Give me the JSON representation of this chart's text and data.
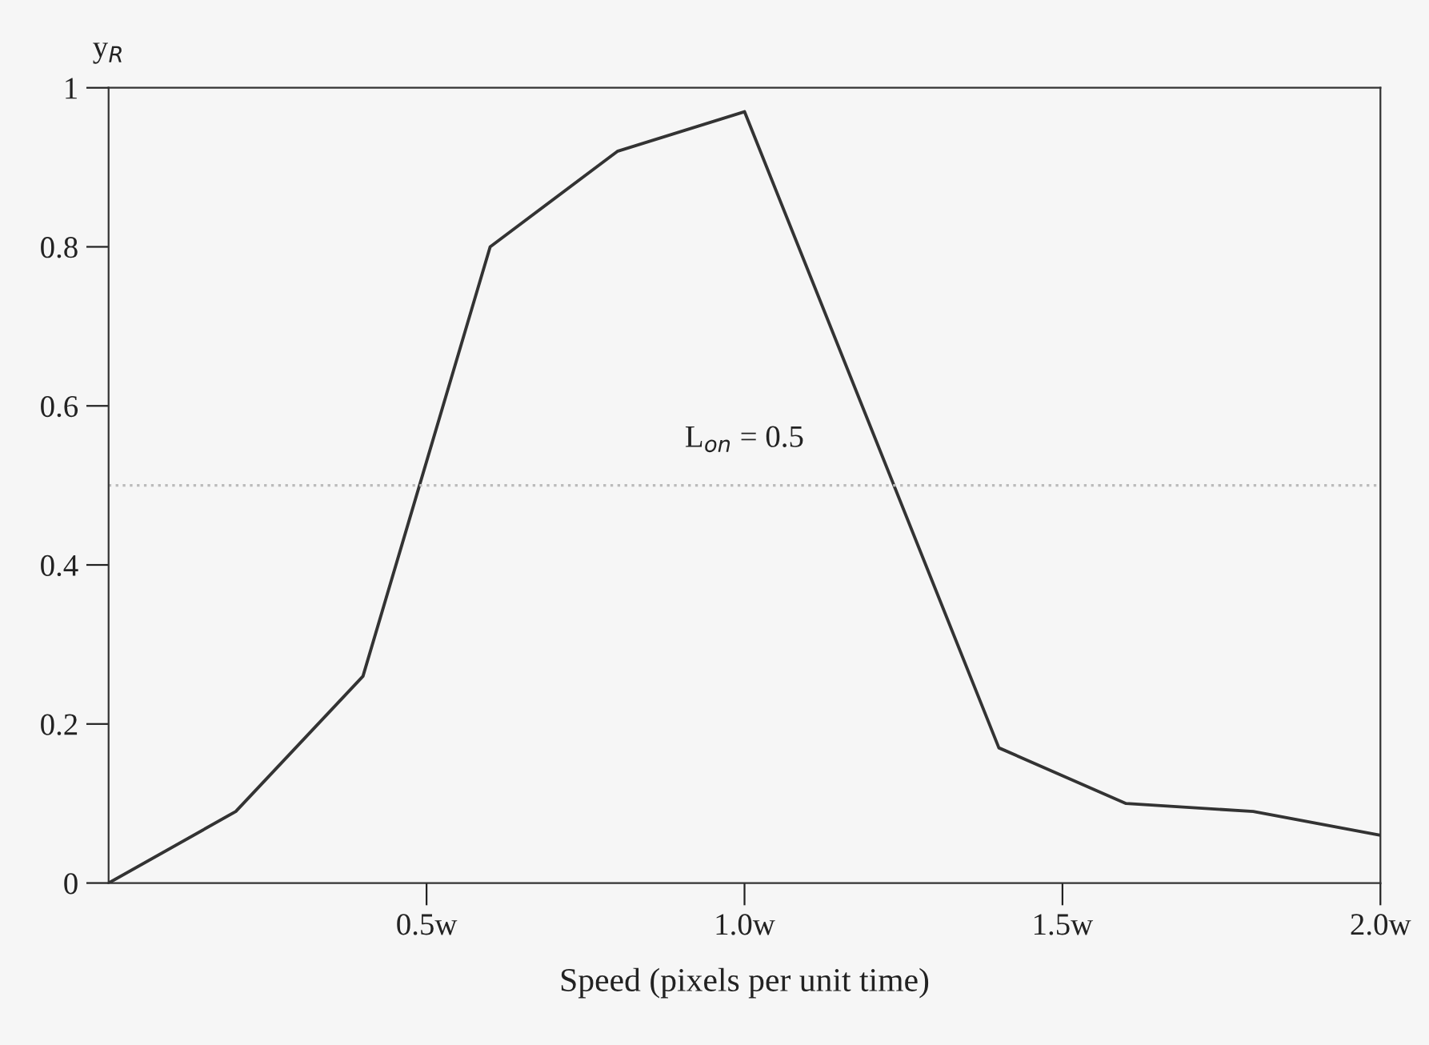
{
  "chart_data": {
    "type": "line",
    "xlabel": "Speed (pixels per unit time)",
    "ylabel": "y$_{R}$",
    "x": [
      0,
      0.2,
      0.4,
      0.6,
      0.8,
      1.0,
      1.4,
      1.6,
      1.8,
      2.0
    ],
    "series": [
      {
        "color": "#333333",
        "values": [
          0,
          0.09,
          0.26,
          0.8,
          0.92,
          0.97,
          0.17,
          0.1,
          0.09,
          0.06
        ]
      }
    ],
    "xlim": [
      0,
      2
    ],
    "xticks": [
      {
        "value": 0.5,
        "label": "0.5w"
      },
      {
        "value": 1.0,
        "label": "1.0w"
      },
      {
        "value": 1.5,
        "label": "1.5w"
      },
      {
        "value": 2.0,
        "label": "2.0w"
      }
    ],
    "ylim": [
      0,
      1
    ],
    "yticks": [
      0,
      0.2,
      0.4,
      0.6,
      0.8,
      1
    ],
    "ref_lines": [
      {
        "axis": "y",
        "value": 0.5,
        "label": "L$_{on}$ = 0.5",
        "color": "#bbbbbb",
        "line_style": "dotted"
      }
    ],
    "grid": false,
    "legend": false,
    "marker": "none",
    "line_style": "solid"
  }
}
